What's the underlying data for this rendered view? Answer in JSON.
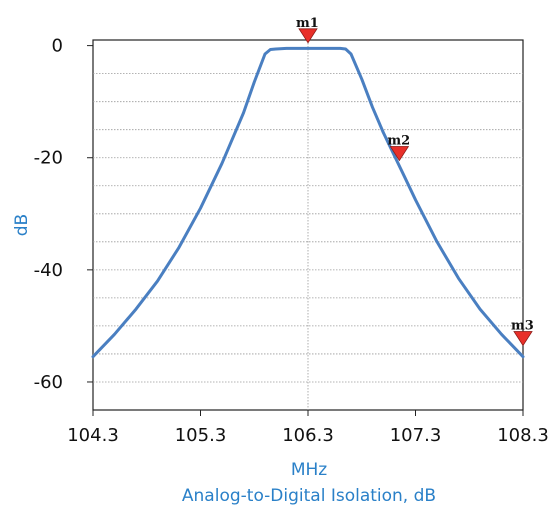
{
  "chart_data": {
    "type": "line",
    "title": "Analog-to-Digital Isolation, dB",
    "xlabel": "MHz",
    "ylabel": "dB",
    "xlim": [
      104.3,
      108.3
    ],
    "ylim": [
      -65,
      1
    ],
    "x_ticks": [
      "104.3",
      "105.3",
      "106.3",
      "107.3",
      "108.3"
    ],
    "y_ticks": [
      "0",
      "-20",
      "-40",
      "-60"
    ],
    "grid_y_values": [
      -5,
      -10,
      -15,
      -20,
      -25,
      -30,
      -35,
      -40,
      -45,
      -50,
      -55,
      -60
    ],
    "grid": true,
    "series": [
      {
        "color": "#4a7fc1",
        "x": [
          104.3,
          104.5,
          104.7,
          104.9,
          105.1,
          105.3,
          105.5,
          105.7,
          105.8,
          105.9,
          105.95,
          106.0,
          106.1,
          106.2,
          106.3,
          106.4,
          106.5,
          106.6,
          106.65,
          106.7,
          106.8,
          106.9,
          107.0,
          107.1,
          107.2,
          107.3,
          107.5,
          107.7,
          107.9,
          108.1,
          108.3
        ],
        "y": [
          -55.5,
          -51.5,
          -47,
          -42,
          -36,
          -29,
          -21,
          -12,
          -6.5,
          -1.5,
          -0.7,
          -0.6,
          -0.5,
          -0.5,
          -0.5,
          -0.5,
          -0.5,
          -0.5,
          -0.6,
          -1.5,
          -6,
          -11,
          -15.5,
          -19.5,
          -23.5,
          -27.5,
          -35,
          -41.5,
          -47,
          -51.5,
          -55.5
        ]
      }
    ],
    "markers": [
      {
        "label": "m1",
        "x": 106.3,
        "y": 0.5
      },
      {
        "label": "m2",
        "x": 107.15,
        "y": -20.5
      },
      {
        "label": "m3",
        "x": 108.3,
        "y": -53.5
      }
    ],
    "colors": {
      "line": "#4a7fc1",
      "marker_fill": "#e8302a",
      "grid": "#9a9a9a",
      "axis_title": "#2a80c8"
    }
  }
}
